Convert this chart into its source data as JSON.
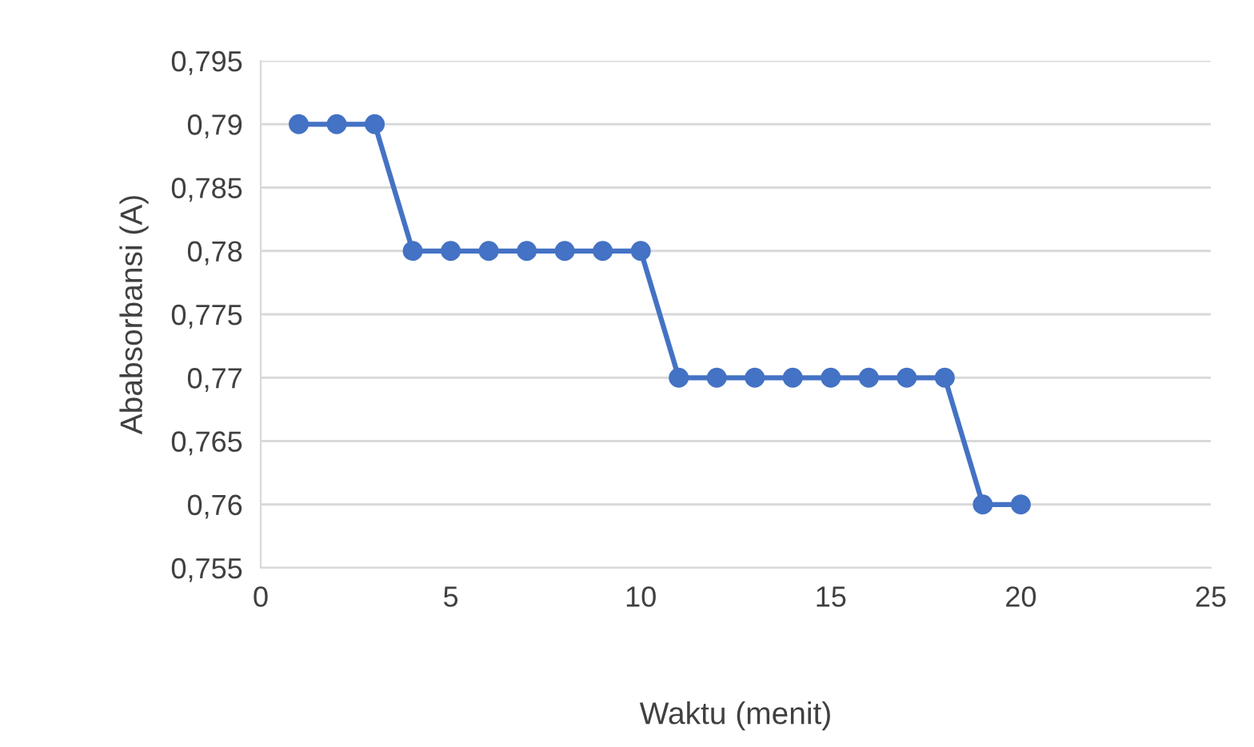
{
  "chart_data": {
    "type": "line",
    "xlabel": "Waktu (menit)",
    "ylabel": "Ababsorbansi (A)",
    "x": [
      1,
      2,
      3,
      4,
      5,
      6,
      7,
      8,
      9,
      10,
      11,
      12,
      13,
      14,
      15,
      16,
      17,
      18,
      19,
      20
    ],
    "series": [
      {
        "color": "#4472c4",
        "values": [
          0.79,
          0.79,
          0.79,
          0.78,
          0.78,
          0.78,
          0.78,
          0.78,
          0.78,
          0.78,
          0.77,
          0.77,
          0.77,
          0.77,
          0.77,
          0.77,
          0.77,
          0.77,
          0.76,
          0.76
        ]
      }
    ],
    "xlim": [
      0,
      25
    ],
    "xticks": [
      0,
      5,
      10,
      15,
      20,
      25
    ],
    "ylim": [
      0.755,
      0.795
    ],
    "yticks": [
      {
        "value": 0.755,
        "label": "0,755"
      },
      {
        "value": 0.76,
        "label": "0,76"
      },
      {
        "value": 0.765,
        "label": "0,765"
      },
      {
        "value": 0.77,
        "label": "0,77"
      },
      {
        "value": 0.775,
        "label": "0,775"
      },
      {
        "value": 0.78,
        "label": "0,78"
      },
      {
        "value": 0.785,
        "label": "0,785"
      },
      {
        "value": 0.79,
        "label": "0,79"
      },
      {
        "value": 0.795,
        "label": "0,795"
      }
    ],
    "grid": "y",
    "marker": "circle",
    "line_style": "solid",
    "legend": false
  }
}
